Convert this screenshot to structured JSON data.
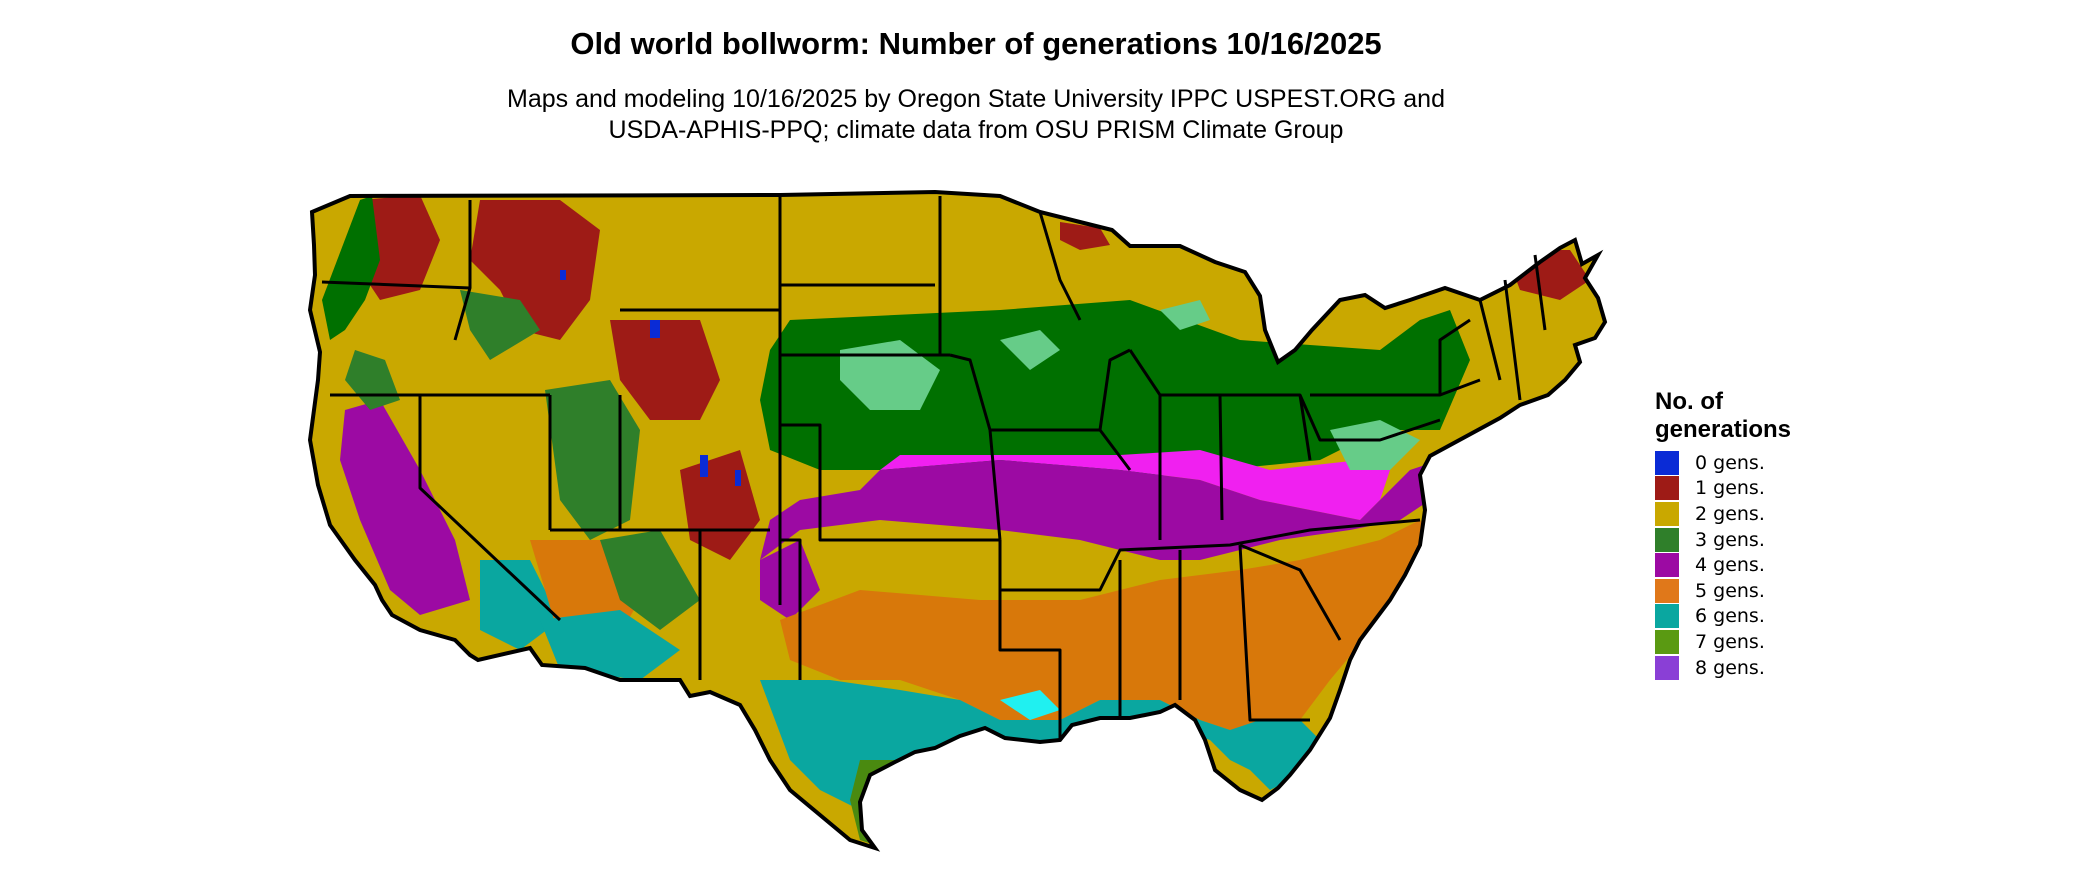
{
  "header": {
    "title": "Old world bollworm: Number of generations 10/16/2025",
    "subtitle_line1": "Maps and modeling 10/16/2025 by Oregon State University IPPC USPEST.ORG and",
    "subtitle_line2": "USDA-APHIS-PPQ; climate data from OSU PRISM Climate Group"
  },
  "legend": {
    "title_line1": "No. of",
    "title_line2": "generations",
    "items": [
      {
        "label": "0 gens.",
        "color": "#0a2bd6"
      },
      {
        "label": "1 gens.",
        "color": "#9e1b16"
      },
      {
        "label": "2 gens.",
        "color": "#c9a800"
      },
      {
        "label": "3 gens.",
        "color": "#2f7f2a"
      },
      {
        "label": "4 gens.",
        "color": "#9c0aa3"
      },
      {
        "label": "5 gens.",
        "color": "#e0781a"
      },
      {
        "label": "6 gens.",
        "color": "#0aa7a0"
      },
      {
        "label": "7 gens.",
        "color": "#5a9a12"
      },
      {
        "label": "8 gens.",
        "color": "#8a3fd6"
      }
    ]
  },
  "map": {
    "colors": {
      "gen0": "#0a2bd6",
      "gen1": "#9e1b16",
      "gen2": "#c9a800",
      "gen3": "#007000",
      "gen3_light": "#66cc88",
      "gen4": "#9c0aa3",
      "gen4_bright": "#f020f0",
      "gen5": "#d8780a",
      "gen6": "#0aa7a0",
      "gen6_cyan": "#20f0f0",
      "gen7": "#4a8a10",
      "gen8": "#8a3fd6",
      "boundary": "#000000"
    }
  }
}
